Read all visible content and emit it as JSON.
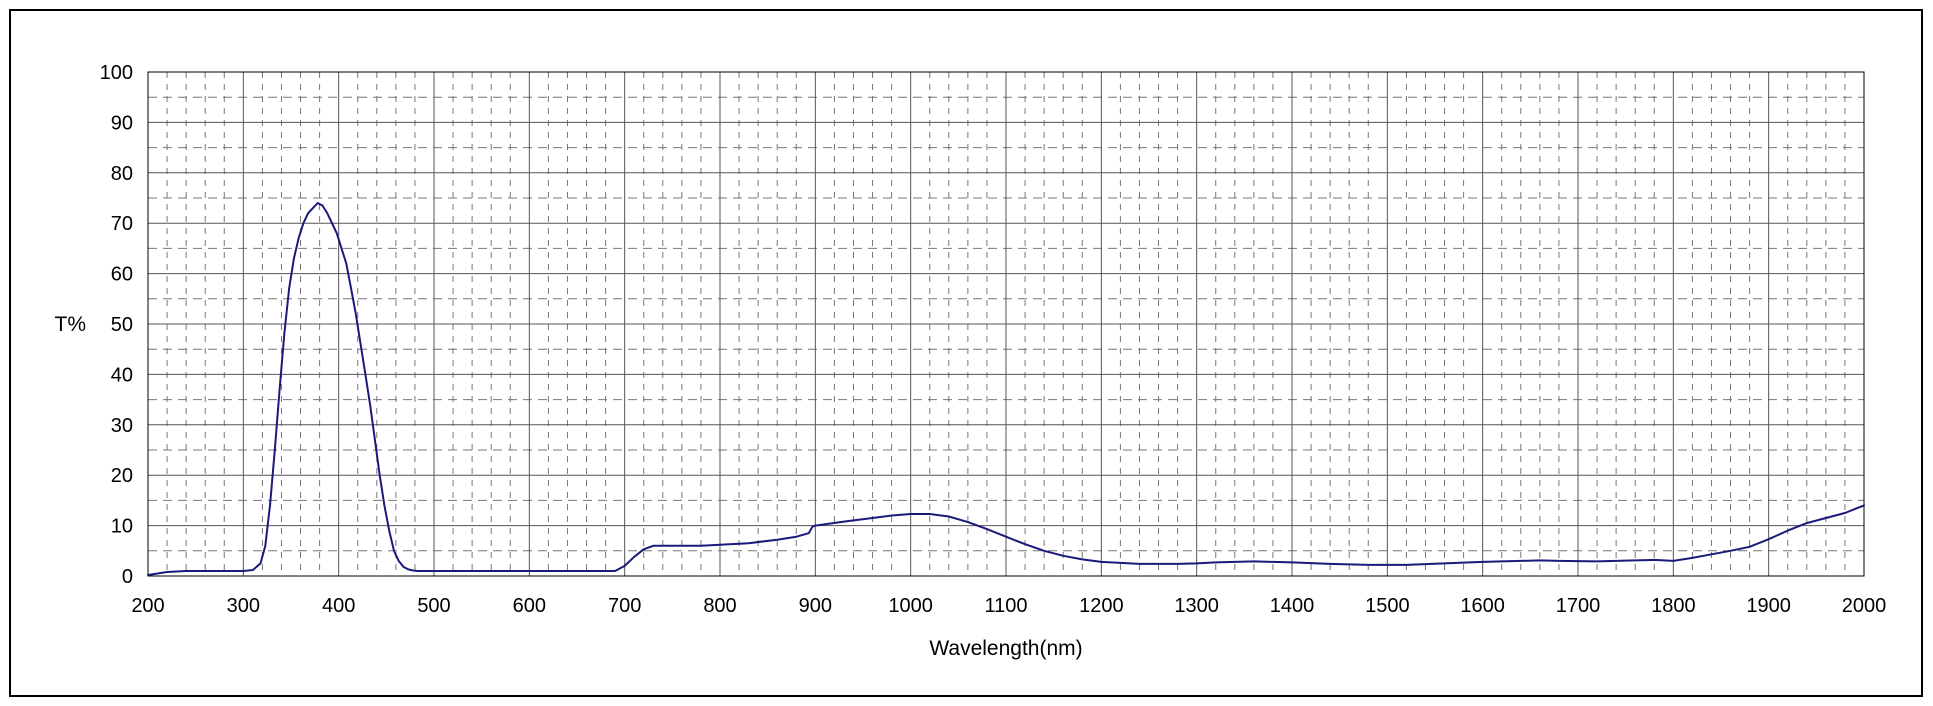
{
  "chart_data": {
    "type": "line",
    "title": "",
    "xlabel": "Wavelength(nm)",
    "ylabel": "T%",
    "xlim": [
      200,
      2000
    ],
    "ylim": [
      0,
      100
    ],
    "x_ticks": [
      200,
      300,
      400,
      500,
      600,
      700,
      800,
      900,
      1000,
      1100,
      1200,
      1300,
      1400,
      1500,
      1600,
      1700,
      1800,
      1900,
      2000
    ],
    "y_ticks": [
      0,
      10,
      20,
      30,
      40,
      50,
      60,
      70,
      80,
      90,
      100
    ],
    "grid": "major solid, minor dashed",
    "line_color": "#1a1a7a",
    "series": [
      {
        "x": [
          200,
          220,
          240,
          260,
          280,
          300,
          310,
          318,
          323,
          328,
          333,
          338,
          343,
          348,
          353,
          358,
          363,
          368,
          373,
          378,
          383,
          388,
          393,
          398,
          403,
          408,
          413,
          418,
          423,
          428,
          433,
          438,
          443,
          448,
          453,
          458,
          463,
          468,
          473,
          478,
          483,
          490,
          500,
          550,
          600,
          650,
          690,
          700,
          710,
          720,
          730,
          760,
          780,
          800,
          830,
          860,
          880,
          893,
          897,
          900,
          930,
          960,
          980,
          1000,
          1020,
          1040,
          1060,
          1080,
          1100,
          1120,
          1140,
          1160,
          1180,
          1200,
          1240,
          1280,
          1300,
          1320,
          1340,
          1360,
          1380,
          1400,
          1440,
          1480,
          1520,
          1560,
          1600,
          1640,
          1660,
          1680,
          1720,
          1760,
          1780,
          1800,
          1820,
          1840,
          1860,
          1880,
          1900,
          1920,
          1940,
          1960,
          1980,
          2000
        ],
        "y": [
          0.2,
          0.8,
          1.0,
          1.0,
          1.0,
          1.0,
          1.2,
          2.5,
          6,
          14,
          25,
          37,
          48,
          57,
          63,
          67,
          70,
          72,
          73,
          74,
          73.5,
          72,
          70,
          68,
          65,
          62,
          57,
          52,
          46,
          40,
          34,
          27,
          20,
          14,
          9,
          5,
          3,
          1.8,
          1.3,
          1.1,
          1.0,
          1.0,
          1.0,
          1.0,
          1.0,
          1.0,
          1.0,
          2.0,
          3.8,
          5.3,
          6.0,
          6.0,
          6.0,
          6.2,
          6.5,
          7.2,
          7.8,
          8.5,
          9.8,
          10.0,
          10.8,
          11.5,
          12.0,
          12.3,
          12.3,
          11.8,
          10.7,
          9.3,
          7.8,
          6.3,
          5.0,
          4.0,
          3.3,
          2.8,
          2.4,
          2.4,
          2.5,
          2.7,
          2.8,
          2.9,
          2.8,
          2.7,
          2.4,
          2.2,
          2.2,
          2.5,
          2.8,
          3.0,
          3.1,
          3.0,
          2.9,
          3.1,
          3.2,
          3.0,
          3.6,
          4.3,
          5.0,
          5.8,
          7.3,
          9.0,
          10.5,
          11.5,
          12.5,
          14.0
        ]
      }
    ]
  }
}
